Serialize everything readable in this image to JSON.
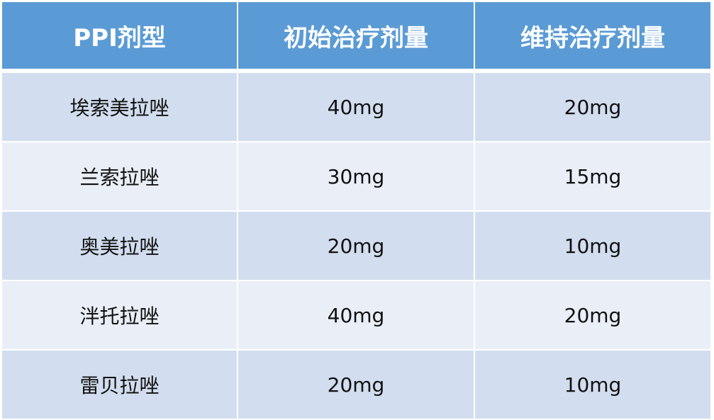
{
  "table": {
    "headers": [
      "PPI剂型",
      "初始治疗剂量",
      "维持治疗剂量"
    ],
    "rows": [
      [
        "埃索美拉唑",
        "40mg",
        "20mg"
      ],
      [
        "兰索拉唑",
        "30mg",
        "15mg"
      ],
      [
        "奥美拉唑",
        "20mg",
        "10mg"
      ],
      [
        "泮托拉唑",
        "40mg",
        "20mg"
      ],
      [
        "雷贝拉唑",
        "20mg",
        "10mg"
      ]
    ]
  },
  "colors": {
    "header": "#5b9bd5",
    "row_odd": "#d2deef",
    "row_even": "#eaeff7"
  }
}
